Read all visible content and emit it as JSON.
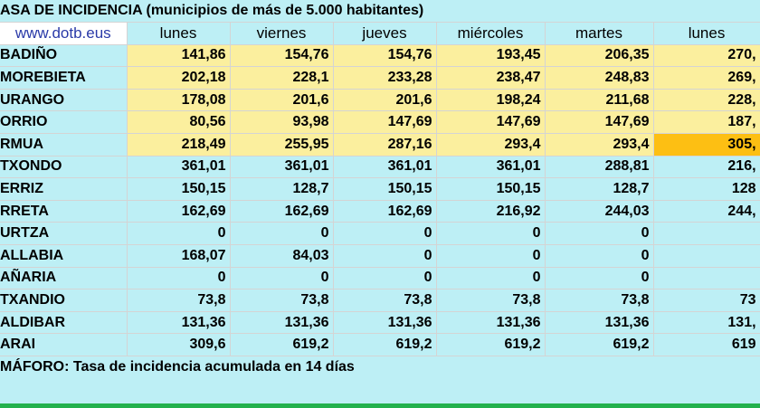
{
  "title": "ASA DE INCIDENCIA  (municipios de más de 5.000 habitantes)",
  "site": "www.dotb.eus",
  "days": [
    "lunes",
    "viernes",
    "jueves",
    "miércoles",
    "martes",
    "lunes"
  ],
  "rows": [
    {
      "name": "BADIÑO",
      "values": [
        "141,86",
        "154,76",
        "154,76",
        "193,45",
        "206,35",
        "270,"
      ],
      "highlight": true
    },
    {
      "name": "MOREBIETA",
      "values": [
        "202,18",
        "228,1",
        "233,28",
        "238,47",
        "248,83",
        "269,"
      ],
      "highlight": true
    },
    {
      "name": "URANGO",
      "values": [
        "178,08",
        "201,6",
        "201,6",
        "198,24",
        "211,68",
        "228,"
      ],
      "highlight": true
    },
    {
      "name": "ORRIO",
      "values": [
        "80,56",
        "93,98",
        "147,69",
        "147,69",
        "147,69",
        "187,"
      ],
      "highlight": true
    },
    {
      "name": "RMUA",
      "values": [
        "218,49",
        "255,95",
        "287,16",
        "293,4",
        "293,4",
        "305,"
      ],
      "highlight": true,
      "last_orange": true
    },
    {
      "name": "TXONDO",
      "values": [
        "361,01",
        "361,01",
        "361,01",
        "361,01",
        "288,81",
        "216,"
      ],
      "highlight": false
    },
    {
      "name": "ERRIZ",
      "values": [
        "150,15",
        "128,7",
        "150,15",
        "150,15",
        "128,7",
        "128"
      ],
      "highlight": false
    },
    {
      "name": "RRETA",
      "values": [
        "162,69",
        "162,69",
        "162,69",
        "216,92",
        "244,03",
        "244,"
      ],
      "highlight": false
    },
    {
      "name": "URTZA",
      "values": [
        "0",
        "0",
        "0",
        "0",
        "0",
        ""
      ],
      "highlight": false
    },
    {
      "name": "ALLABIA",
      "values": [
        "168,07",
        "84,03",
        "0",
        "0",
        "0",
        ""
      ],
      "highlight": false
    },
    {
      "name": "AÑARIA",
      "values": [
        "0",
        "0",
        "0",
        "0",
        "0",
        ""
      ],
      "highlight": false
    },
    {
      "name": "TXANDIO",
      "values": [
        "73,8",
        "73,8",
        "73,8",
        "73,8",
        "73,8",
        "73"
      ],
      "highlight": false
    },
    {
      "name": "ALDIBAR",
      "values": [
        "131,36",
        "131,36",
        "131,36",
        "131,36",
        "131,36",
        "131,"
      ],
      "highlight": false
    },
    {
      "name": "ARAI",
      "values": [
        "309,6",
        "619,2",
        "619,2",
        "619,2",
        "619,2",
        "619"
      ],
      "highlight": false
    }
  ],
  "footer": "MÁFORO:  Tasa de incidencia acumulada en 14 días",
  "colors": {
    "highlight": "#fbef9e",
    "orange": "#fdbf13",
    "background": "#bdeff5",
    "green_bar": "#23b14d"
  }
}
